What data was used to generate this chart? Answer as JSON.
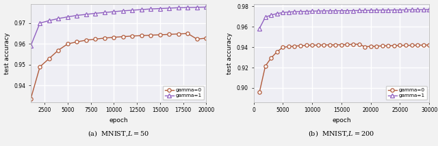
{
  "plot_a": {
    "title": "(a)  MNIST,$L = 50$",
    "xlabel": "epoch",
    "ylabel": "test accuracy",
    "xlim": [
      1000,
      20000
    ],
    "ylim": [
      0.932,
      0.979
    ],
    "yticks": [
      0.94,
      0.95,
      0.96,
      0.97
    ],
    "xticks": [
      2500,
      5000,
      7500,
      10000,
      12500,
      15000,
      17500,
      20000
    ],
    "gamma0_x": [
      1000,
      2000,
      3000,
      4000,
      5000,
      6000,
      7000,
      8000,
      9000,
      10000,
      11000,
      12000,
      13000,
      14000,
      15000,
      16000,
      17000,
      18000,
      19000,
      20000
    ],
    "gamma0_y": [
      0.9335,
      0.949,
      0.953,
      0.957,
      0.96,
      0.961,
      0.9618,
      0.9623,
      0.9628,
      0.9632,
      0.9635,
      0.9638,
      0.964,
      0.9642,
      0.9644,
      0.9646,
      0.9648,
      0.965,
      0.9623,
      0.9628
    ],
    "gamma1_x": [
      1000,
      2000,
      3000,
      4000,
      5000,
      6000,
      7000,
      8000,
      9000,
      10000,
      11000,
      12000,
      13000,
      14000,
      15000,
      16000,
      17000,
      18000,
      19000,
      20000
    ],
    "gamma1_y": [
      0.959,
      0.97,
      0.9712,
      0.9722,
      0.973,
      0.9737,
      0.9742,
      0.9747,
      0.9751,
      0.9755,
      0.9759,
      0.9762,
      0.9765,
      0.9768,
      0.977,
      0.9772,
      0.9774,
      0.9775,
      0.9776,
      0.9777
    ],
    "color0": "#b05a3a",
    "color1": "#9060c0",
    "marker0": "o",
    "marker1": "^"
  },
  "plot_b": {
    "title": "(b)  MNIST,$L = 200$",
    "xlabel": "epoch",
    "ylabel": "test accuracy",
    "xlim": [
      0,
      30000
    ],
    "ylim": [
      0.886,
      0.982
    ],
    "yticks": [
      0.9,
      0.92,
      0.94,
      0.96,
      0.98
    ],
    "xticks": [
      0,
      5000,
      10000,
      15000,
      20000,
      25000,
      30000
    ],
    "gamma0_x": [
      1000,
      2000,
      3000,
      4000,
      5000,
      6000,
      7000,
      8000,
      9000,
      10000,
      11000,
      12000,
      13000,
      14000,
      15000,
      16000,
      17000,
      18000,
      19000,
      20000,
      21000,
      22000,
      23000,
      24000,
      25000,
      26000,
      27000,
      28000,
      29000,
      30000
    ],
    "gamma0_y": [
      0.896,
      0.9215,
      0.9295,
      0.9355,
      0.94,
      0.9405,
      0.941,
      0.9415,
      0.9418,
      0.942,
      0.942,
      0.9422,
      0.9422,
      0.9423,
      0.9424,
      0.9425,
      0.9428,
      0.943,
      0.9404,
      0.9408,
      0.941,
      0.9413,
      0.9415,
      0.9416,
      0.9418,
      0.9418,
      0.9418,
      0.942,
      0.942,
      0.9422
    ],
    "gamma1_x": [
      1000,
      2000,
      3000,
      4000,
      5000,
      6000,
      7000,
      8000,
      9000,
      10000,
      11000,
      12000,
      13000,
      14000,
      15000,
      16000,
      17000,
      18000,
      19000,
      20000,
      21000,
      22000,
      23000,
      24000,
      25000,
      26000,
      27000,
      28000,
      29000,
      30000
    ],
    "gamma1_y": [
      0.9585,
      0.9695,
      0.9715,
      0.973,
      0.974,
      0.9745,
      0.9748,
      0.975,
      0.9752,
      0.9754,
      0.9755,
      0.9756,
      0.9757,
      0.9757,
      0.9758,
      0.9758,
      0.9759,
      0.976,
      0.976,
      0.9762,
      0.9763,
      0.9764,
      0.9764,
      0.9765,
      0.9765,
      0.9766,
      0.9767,
      0.9767,
      0.9768,
      0.977
    ],
    "color0": "#b05a3a",
    "color1": "#9060c0",
    "marker0": "o",
    "marker1": "^"
  },
  "legend_labels": [
    "gamma=0",
    "gamma=1"
  ],
  "bg_color": "#eeeef4",
  "grid_color": "white",
  "fig_bg": "#f2f2f2"
}
